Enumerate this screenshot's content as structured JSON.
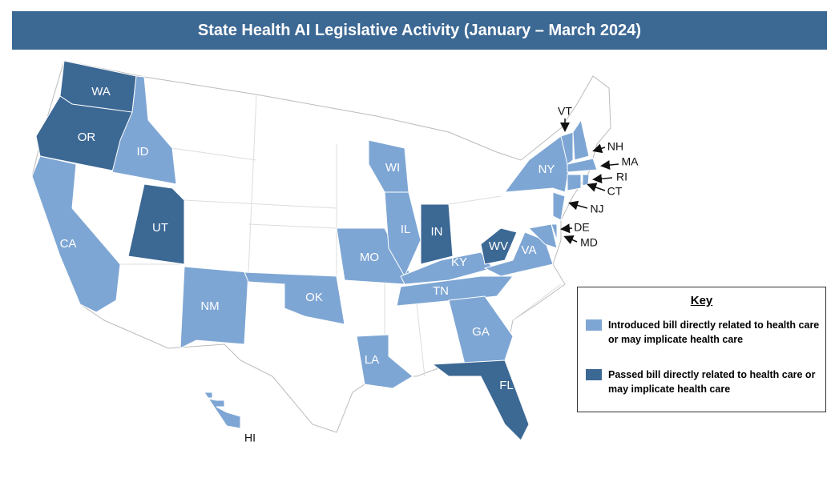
{
  "title": "State Health AI Legislative Activity (January – March 2024)",
  "key": {
    "title": "Key",
    "items": [
      {
        "label": "Introduced bill directly related to health care or may implicate health care",
        "color": "#7ea6d4"
      },
      {
        "label": "Passed bill directly related to health care or may implicate health care",
        "color": "#3c6894"
      }
    ]
  },
  "states": [
    {
      "label": "WA",
      "key": 1
    },
    {
      "label": "OR",
      "key": 1
    },
    {
      "label": "ID",
      "key": 0
    },
    {
      "label": "CA",
      "key": 0
    },
    {
      "label": "UT",
      "key": 1
    },
    {
      "label": "NM",
      "key": 0
    },
    {
      "label": "OK",
      "key": 0
    },
    {
      "label": "MO",
      "key": 0
    },
    {
      "label": "LA",
      "key": 0
    },
    {
      "label": "IL",
      "key": 0
    },
    {
      "label": "WI",
      "key": 0
    },
    {
      "label": "IN",
      "key": 1
    },
    {
      "label": "KY",
      "key": 0
    },
    {
      "label": "TN",
      "key": 0
    },
    {
      "label": "GA",
      "key": 0
    },
    {
      "label": "FL",
      "key": 1
    },
    {
      "label": "WV",
      "key": 1
    },
    {
      "label": "VA",
      "key": 0
    },
    {
      "label": "NY",
      "key": 0
    },
    {
      "label": "VT",
      "key": 0
    },
    {
      "label": "NH",
      "key": 0
    },
    {
      "label": "MA",
      "key": 0
    },
    {
      "label": "RI",
      "key": 0
    },
    {
      "label": "CT",
      "key": 0
    },
    {
      "label": "NJ",
      "key": 0
    },
    {
      "label": "DE",
      "key": 0
    },
    {
      "label": "MD",
      "key": 0
    },
    {
      "label": "HI",
      "key": 0
    }
  ]
}
